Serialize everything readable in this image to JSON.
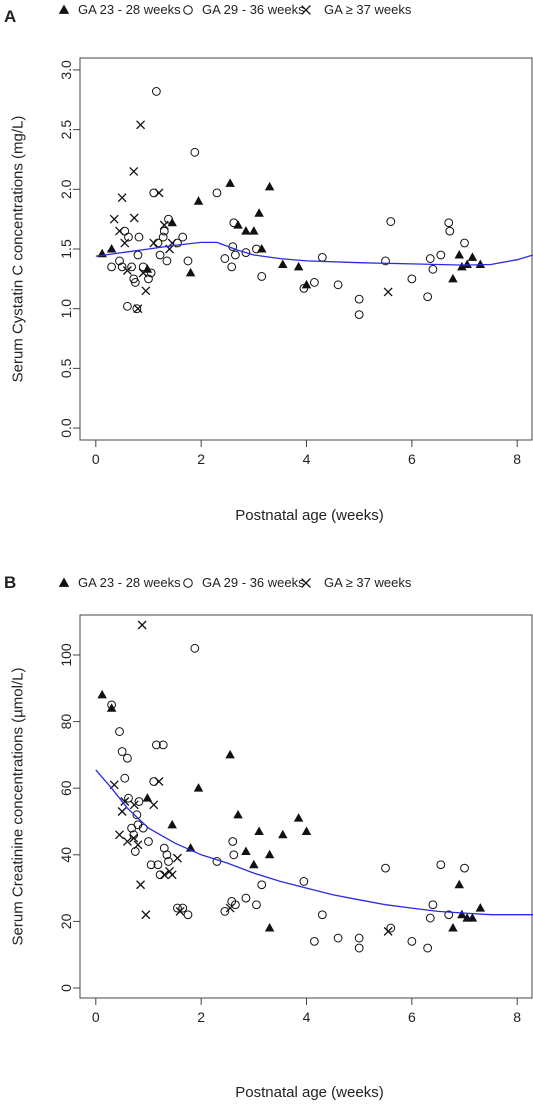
{
  "chart_data": [
    {
      "type": "scatter",
      "panel_label": "A",
      "xlabel": "Postnatal age (weeks)",
      "ylabel": "Serum Cystatin C concentrations (mg/L)",
      "xlim": [
        -0.3,
        8.3
      ],
      "ylim": [
        -0.1,
        3.1
      ],
      "xticks": [
        0,
        2,
        4,
        6,
        8
      ],
      "yticks": [
        0.0,
        0.5,
        1.0,
        1.5,
        2.0,
        2.5,
        3.0
      ],
      "ytick_labels": [
        "0.0",
        "0.5",
        "1.0",
        "1.5",
        "2.0",
        "2.5",
        "3.0"
      ],
      "legend_position": "top",
      "series": [
        {
          "name": "GA 23 - 28 weeks",
          "marker": "triangle",
          "points": [
            [
              0.12,
              1.46
            ],
            [
              0.3,
              1.5
            ],
            [
              0.98,
              1.33
            ],
            [
              1.45,
              1.72
            ],
            [
              1.8,
              1.3
            ],
            [
              1.95,
              1.9
            ],
            [
              2.55,
              2.05
            ],
            [
              2.7,
              1.7
            ],
            [
              2.85,
              1.65
            ],
            [
              3.0,
              1.65
            ],
            [
              3.1,
              1.8
            ],
            [
              3.15,
              1.5
            ],
            [
              3.3,
              2.02
            ],
            [
              3.55,
              1.37
            ],
            [
              3.85,
              1.35
            ],
            [
              4.0,
              1.2
            ],
            [
              6.78,
              1.25
            ],
            [
              6.9,
              1.45
            ],
            [
              6.95,
              1.35
            ],
            [
              7.05,
              1.37
            ],
            [
              7.15,
              1.43
            ],
            [
              7.3,
              1.37
            ]
          ]
        },
        {
          "name": "GA 29 - 36 weeks",
          "marker": "circle",
          "points": [
            [
              0.3,
              1.35
            ],
            [
              0.45,
              1.4
            ],
            [
              0.5,
              1.35
            ],
            [
              0.55,
              1.65
            ],
            [
              0.6,
              1.02
            ],
            [
              0.62,
              1.6
            ],
            [
              0.68,
              1.35
            ],
            [
              0.72,
              1.25
            ],
            [
              0.75,
              1.22
            ],
            [
              0.78,
              1.0
            ],
            [
              0.8,
              1.45
            ],
            [
              0.82,
              1.6
            ],
            [
              0.9,
              1.35
            ],
            [
              1.0,
              1.25
            ],
            [
              1.05,
              1.3
            ],
            [
              1.1,
              1.97
            ],
            [
              1.15,
              2.82
            ],
            [
              1.18,
              1.55
            ],
            [
              1.22,
              1.45
            ],
            [
              1.28,
              1.6
            ],
            [
              1.3,
              1.65
            ],
            [
              1.35,
              1.4
            ],
            [
              1.38,
              1.75
            ],
            [
              1.55,
              1.55
            ],
            [
              1.65,
              1.6
            ],
            [
              1.75,
              1.4
            ],
            [
              1.88,
              2.31
            ],
            [
              2.3,
              1.97
            ],
            [
              2.45,
              1.42
            ],
            [
              2.58,
              1.35
            ],
            [
              2.6,
              1.52
            ],
            [
              2.62,
              1.72
            ],
            [
              2.65,
              1.45
            ],
            [
              2.85,
              1.47
            ],
            [
              3.05,
              1.5
            ],
            [
              3.15,
              1.27
            ],
            [
              3.95,
              1.17
            ],
            [
              4.15,
              1.22
            ],
            [
              4.3,
              1.43
            ],
            [
              4.6,
              1.2
            ],
            [
              5.0,
              1.08
            ],
            [
              5.0,
              0.95
            ],
            [
              5.5,
              1.4
            ],
            [
              5.6,
              1.73
            ],
            [
              6.0,
              1.25
            ],
            [
              6.3,
              1.1
            ],
            [
              6.35,
              1.42
            ],
            [
              6.4,
              1.33
            ],
            [
              6.55,
              1.45
            ],
            [
              6.7,
              1.72
            ],
            [
              6.72,
              1.65
            ],
            [
              7.0,
              1.55
            ]
          ]
        },
        {
          "name": "GA ≥ 37 weeks",
          "marker": "cross",
          "points": [
            [
              0.35,
              1.75
            ],
            [
              0.45,
              1.65
            ],
            [
              0.5,
              1.93
            ],
            [
              0.55,
              1.55
            ],
            [
              0.6,
              1.32
            ],
            [
              0.72,
              2.15
            ],
            [
              0.73,
              1.76
            ],
            [
              0.8,
              1.0
            ],
            [
              0.85,
              2.54
            ],
            [
              0.9,
              1.3
            ],
            [
              0.95,
              1.15
            ],
            [
              1.1,
              1.55
            ],
            [
              1.2,
              1.97
            ],
            [
              1.3,
              1.7
            ],
            [
              1.4,
              1.5
            ],
            [
              1.45,
              1.55
            ],
            [
              5.55,
              1.14
            ]
          ]
        }
      ],
      "trend": {
        "x": [
          0,
          0.5,
          1,
          1.5,
          2,
          2.3,
          2.7,
          3,
          3.5,
          4,
          5,
          6,
          6.5,
          7,
          7.5,
          8,
          8.3
        ],
        "y": [
          1.44,
          1.47,
          1.5,
          1.53,
          1.555,
          1.555,
          1.49,
          1.45,
          1.42,
          1.4,
          1.385,
          1.375,
          1.37,
          1.365,
          1.37,
          1.41,
          1.45
        ]
      }
    },
    {
      "type": "scatter",
      "panel_label": "B",
      "xlabel": "Postnatal age (weeks)",
      "ylabel": "Serum Creatinine concentrations (µmol/L)",
      "xlim": [
        -0.3,
        8.3
      ],
      "ylim": [
        -3,
        112
      ],
      "xticks": [
        0,
        2,
        4,
        6,
        8
      ],
      "yticks": [
        0,
        20,
        40,
        60,
        80,
        100
      ],
      "ytick_labels": [
        "0",
        "20",
        "40",
        "60",
        "80",
        "100"
      ],
      "legend_position": "top",
      "series": [
        {
          "name": "GA 23 - 28 weeks",
          "marker": "triangle",
          "points": [
            [
              0.12,
              88
            ],
            [
              0.3,
              84
            ],
            [
              0.98,
              57
            ],
            [
              1.45,
              49
            ],
            [
              1.8,
              42
            ],
            [
              1.95,
              60
            ],
            [
              2.55,
              70
            ],
            [
              2.7,
              52
            ],
            [
              2.85,
              41
            ],
            [
              3.0,
              37
            ],
            [
              3.1,
              47
            ],
            [
              3.3,
              40
            ],
            [
              3.3,
              18
            ],
            [
              3.55,
              46
            ],
            [
              3.85,
              51
            ],
            [
              4.0,
              47
            ],
            [
              6.78,
              18
            ],
            [
              6.9,
              31
            ],
            [
              6.95,
              22
            ],
            [
              7.05,
              21
            ],
            [
              7.15,
              21
            ],
            [
              7.3,
              24
            ]
          ]
        },
        {
          "name": "GA 29 - 36 weeks",
          "marker": "circle",
          "points": [
            [
              0.3,
              85
            ],
            [
              0.45,
              77
            ],
            [
              0.5,
              71
            ],
            [
              0.55,
              63
            ],
            [
              0.6,
              69
            ],
            [
              0.62,
              57
            ],
            [
              0.68,
              48
            ],
            [
              0.72,
              46
            ],
            [
              0.75,
              41
            ],
            [
              0.78,
              52
            ],
            [
              0.8,
              49
            ],
            [
              0.82,
              56
            ],
            [
              0.9,
              48
            ],
            [
              1.0,
              44
            ],
            [
              1.05,
              37
            ],
            [
              1.1,
              62
            ],
            [
              1.15,
              73
            ],
            [
              1.18,
              37
            ],
            [
              1.22,
              34
            ],
            [
              1.28,
              73
            ],
            [
              1.3,
              42
            ],
            [
              1.35,
              40
            ],
            [
              1.38,
              38
            ],
            [
              1.55,
              24
            ],
            [
              1.65,
              24
            ],
            [
              1.75,
              22
            ],
            [
              1.88,
              102
            ],
            [
              2.3,
              38
            ],
            [
              2.45,
              23
            ],
            [
              2.58,
              26
            ],
            [
              2.6,
              44
            ],
            [
              2.62,
              40
            ],
            [
              2.65,
              25
            ],
            [
              2.85,
              27
            ],
            [
              3.05,
              25
            ],
            [
              3.15,
              31
            ],
            [
              3.95,
              32
            ],
            [
              4.15,
              14
            ],
            [
              4.3,
              22
            ],
            [
              4.6,
              15
            ],
            [
              5.0,
              15
            ],
            [
              5.0,
              12
            ],
            [
              5.5,
              36
            ],
            [
              5.6,
              18
            ],
            [
              6.0,
              14
            ],
            [
              6.3,
              12
            ],
            [
              6.35,
              21
            ],
            [
              6.4,
              25
            ],
            [
              6.55,
              37
            ],
            [
              6.7,
              22
            ],
            [
              7.0,
              36
            ]
          ]
        },
        {
          "name": "GA ≥ 37 weeks",
          "marker": "cross",
          "points": [
            [
              0.35,
              61
            ],
            [
              0.45,
              46
            ],
            [
              0.5,
              53
            ],
            [
              0.55,
              56
            ],
            [
              0.6,
              44
            ],
            [
              0.72,
              45
            ],
            [
              0.73,
              55
            ],
            [
              0.8,
              43
            ],
            [
              0.85,
              31
            ],
            [
              0.88,
              109
            ],
            [
              0.95,
              22
            ],
            [
              1.1,
              55
            ],
            [
              1.2,
              62
            ],
            [
              1.3,
              34
            ],
            [
              1.4,
              35
            ],
            [
              1.45,
              34
            ],
            [
              1.55,
              39
            ],
            [
              1.6,
              23
            ],
            [
              2.55,
              24
            ],
            [
              5.55,
              17
            ]
          ]
        }
      ],
      "trend": {
        "x": [
          0,
          0.3,
          0.6,
          1,
          1.5,
          2,
          2.5,
          3,
          3.5,
          4,
          4.5,
          5,
          5.5,
          6,
          6.5,
          7,
          7.5,
          8,
          8.3
        ],
        "y": [
          65.5,
          60,
          54,
          48,
          43.5,
          40,
          37.5,
          34.5,
          32,
          30,
          28,
          26.5,
          25,
          24,
          23,
          22.5,
          22,
          22,
          22
        ]
      }
    }
  ],
  "colors": {
    "trend_line": "#2a2ae6",
    "markers": "#111111",
    "axes": "#444444"
  }
}
